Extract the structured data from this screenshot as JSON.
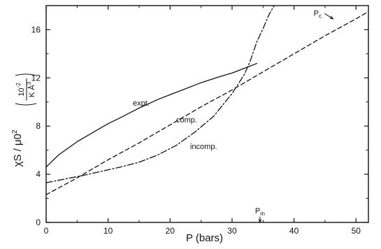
{
  "chart_data": {
    "type": "line",
    "xlabel": "P (bars)",
    "ylabel_main": "χS / μ0",
    "ylabel_sup": "2",
    "ylabel_unit_num": "10",
    "ylabel_unit_num_sup": "-2",
    "ylabel_unit_den": "K Å",
    "ylabel_unit_den_sup": "3",
    "xlim": [
      0,
      52
    ],
    "ylim": [
      0,
      18
    ],
    "xticks": [
      0,
      10,
      20,
      30,
      40,
      50
    ],
    "yticks": [
      0,
      4,
      8,
      12,
      16
    ],
    "grid": false,
    "series": [
      {
        "name": "expt.",
        "style": "solid",
        "x": [
          0,
          2,
          5,
          8,
          10,
          12,
          15,
          18,
          20,
          22,
          25,
          28,
          30,
          32,
          34
        ],
        "y": [
          4.6,
          5.6,
          6.7,
          7.6,
          8.2,
          8.7,
          9.5,
          10.2,
          10.6,
          11.0,
          11.6,
          12.1,
          12.4,
          12.8,
          13.2
        ]
      },
      {
        "name": "comp.",
        "style": "dashed",
        "x": [
          0,
          5,
          10,
          15,
          20,
          25,
          30,
          35,
          40,
          45,
          50,
          52
        ],
        "y": [
          2.3,
          3.7,
          5.2,
          6.6,
          8.1,
          9.6,
          11.0,
          12.5,
          14.0,
          15.5,
          16.9,
          17.5
        ]
      },
      {
        "name": "incomp.",
        "style": "dashdot",
        "x": [
          0,
          3,
          6,
          9,
          12,
          15,
          18,
          21,
          24,
          27,
          30,
          32,
          33,
          34,
          35,
          36,
          36.8
        ],
        "y": [
          3.3,
          3.6,
          3.9,
          4.25,
          4.6,
          5.0,
          5.6,
          6.4,
          7.5,
          8.8,
          10.7,
          12.3,
          13.5,
          15.0,
          16.1,
          17.3,
          18.0
        ]
      }
    ],
    "annotations": [
      {
        "text": "P",
        "sub": "c",
        "x": 43.8,
        "y": 17.4,
        "arrow_to": [
          46.3,
          16.9
        ]
      },
      {
        "text": "P",
        "sub": "m",
        "x": 34.5,
        "y": 1.0,
        "arrow_to": [
          34.5,
          0.0
        ]
      }
    ]
  }
}
